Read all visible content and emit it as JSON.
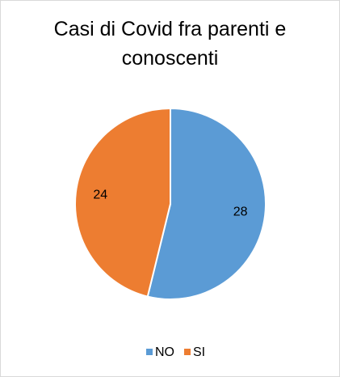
{
  "chart_data": {
    "type": "pie",
    "title": "Casi di Covid fra parenti e conoscenti",
    "categories": [
      "NO",
      "SI"
    ],
    "values": [
      28,
      24
    ],
    "colors": [
      "#5b9bd5",
      "#ed7d31"
    ],
    "legend": "bottom"
  }
}
